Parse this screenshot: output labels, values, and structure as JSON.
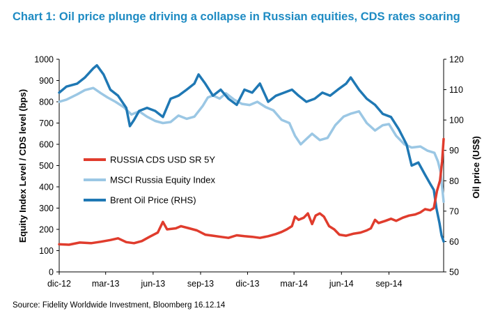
{
  "title": "Chart 1: Oil price plunge driving a collapse in Russian equities, CDS rates soaring",
  "source": "Source: Fidelity Worldwide Investment, Bloomberg 16.12.14",
  "chart_data": {
    "type": "line",
    "ylabel": "Equity Index Level / CDS level (bps)",
    "y2label": "Oil price (US$)",
    "ylim": [
      0,
      1000
    ],
    "y2lim": [
      50,
      120
    ],
    "yticks": [
      0,
      100,
      200,
      300,
      400,
      500,
      600,
      700,
      800,
      900,
      1000
    ],
    "y2ticks": [
      50,
      60,
      70,
      80,
      90,
      100,
      110,
      120
    ],
    "xlim": [
      "2012-12-01",
      "2014-12-16"
    ],
    "xticks": [
      {
        "label": "dic-12",
        "x": "2012-12-01"
      },
      {
        "label": "mar-13",
        "x": "2013-03-01"
      },
      {
        "label": "jun-13",
        "x": "2013-06-01"
      },
      {
        "label": "sep-13",
        "x": "2013-09-01"
      },
      {
        "label": "dic-13",
        "x": "2013-12-01"
      },
      {
        "label": "mar-14",
        "x": "2014-03-01"
      },
      {
        "label": "jun-14",
        "x": "2014-06-01"
      },
      {
        "label": "sep-14",
        "x": "2014-09-01"
      }
    ],
    "legend_position": "center-left",
    "series": [
      {
        "name": "RUSSIA CDS USD SR 5Y",
        "axis": "left",
        "color": "#e03c2d",
        "points": [
          [
            "2012-12-01",
            130
          ],
          [
            "2012-12-20",
            128
          ],
          [
            "2013-01-10",
            138
          ],
          [
            "2013-02-01",
            135
          ],
          [
            "2013-02-20",
            142
          ],
          [
            "2013-03-10",
            150
          ],
          [
            "2013-03-25",
            158
          ],
          [
            "2013-04-10",
            140
          ],
          [
            "2013-04-25",
            135
          ],
          [
            "2013-05-10",
            145
          ],
          [
            "2013-05-25",
            165
          ],
          [
            "2013-06-10",
            185
          ],
          [
            "2013-06-20",
            235
          ],
          [
            "2013-06-28",
            200
          ],
          [
            "2013-07-15",
            205
          ],
          [
            "2013-07-25",
            215
          ],
          [
            "2013-08-10",
            205
          ],
          [
            "2013-08-25",
            195
          ],
          [
            "2013-09-10",
            175
          ],
          [
            "2013-09-25",
            170
          ],
          [
            "2013-10-10",
            165
          ],
          [
            "2013-10-25",
            160
          ],
          [
            "2013-11-10",
            172
          ],
          [
            "2013-11-25",
            168
          ],
          [
            "2013-12-10",
            165
          ],
          [
            "2013-12-25",
            160
          ],
          [
            "2014-01-10",
            168
          ],
          [
            "2014-01-25",
            178
          ],
          [
            "2014-02-05",
            188
          ],
          [
            "2014-02-15",
            200
          ],
          [
            "2014-02-25",
            215
          ],
          [
            "2014-03-03",
            260
          ],
          [
            "2014-03-10",
            245
          ],
          [
            "2014-03-20",
            255
          ],
          [
            "2014-03-28",
            275
          ],
          [
            "2014-04-05",
            225
          ],
          [
            "2014-04-12",
            265
          ],
          [
            "2014-04-20",
            275
          ],
          [
            "2014-04-28",
            260
          ],
          [
            "2014-05-08",
            215
          ],
          [
            "2014-05-18",
            200
          ],
          [
            "2014-05-28",
            175
          ],
          [
            "2014-06-10",
            170
          ],
          [
            "2014-06-25",
            180
          ],
          [
            "2014-07-08",
            185
          ],
          [
            "2014-07-20",
            195
          ],
          [
            "2014-07-28",
            205
          ],
          [
            "2014-08-05",
            245
          ],
          [
            "2014-08-12",
            230
          ],
          [
            "2014-08-25",
            240
          ],
          [
            "2014-09-05",
            250
          ],
          [
            "2014-09-15",
            240
          ],
          [
            "2014-09-28",
            255
          ],
          [
            "2014-10-10",
            265
          ],
          [
            "2014-10-22",
            270
          ],
          [
            "2014-11-01",
            280
          ],
          [
            "2014-11-10",
            295
          ],
          [
            "2014-11-20",
            290
          ],
          [
            "2014-11-27",
            300
          ],
          [
            "2014-12-03",
            380
          ],
          [
            "2014-12-09",
            430
          ],
          [
            "2014-12-13",
            520
          ],
          [
            "2014-12-16",
            625
          ]
        ]
      },
      {
        "name": "MSCI Russia Equity Index",
        "axis": "left",
        "color": "#9bc7e4",
        "points": [
          [
            "2012-12-01",
            800
          ],
          [
            "2012-12-15",
            810
          ],
          [
            "2013-01-05",
            835
          ],
          [
            "2013-01-20",
            855
          ],
          [
            "2013-02-05",
            865
          ],
          [
            "2013-02-20",
            840
          ],
          [
            "2013-03-05",
            820
          ],
          [
            "2013-03-20",
            800
          ],
          [
            "2013-04-05",
            775
          ],
          [
            "2013-04-20",
            740
          ],
          [
            "2013-05-05",
            755
          ],
          [
            "2013-05-20",
            730
          ],
          [
            "2013-06-05",
            710
          ],
          [
            "2013-06-20",
            700
          ],
          [
            "2013-07-05",
            705
          ],
          [
            "2013-07-20",
            735
          ],
          [
            "2013-08-05",
            720
          ],
          [
            "2013-08-20",
            730
          ],
          [
            "2013-09-05",
            780
          ],
          [
            "2013-09-15",
            820
          ],
          [
            "2013-09-25",
            830
          ],
          [
            "2013-10-08",
            815
          ],
          [
            "2013-10-20",
            840
          ],
          [
            "2013-11-05",
            810
          ],
          [
            "2013-11-20",
            790
          ],
          [
            "2013-12-05",
            785
          ],
          [
            "2013-12-20",
            800
          ],
          [
            "2014-01-05",
            775
          ],
          [
            "2014-01-20",
            760
          ],
          [
            "2014-02-05",
            715
          ],
          [
            "2014-02-20",
            700
          ],
          [
            "2014-03-03",
            640
          ],
          [
            "2014-03-14",
            600
          ],
          [
            "2014-03-25",
            625
          ],
          [
            "2014-04-05",
            650
          ],
          [
            "2014-04-20",
            620
          ],
          [
            "2014-05-05",
            630
          ],
          [
            "2014-05-20",
            690
          ],
          [
            "2014-06-05",
            730
          ],
          [
            "2014-06-20",
            745
          ],
          [
            "2014-07-05",
            755
          ],
          [
            "2014-07-20",
            700
          ],
          [
            "2014-08-05",
            665
          ],
          [
            "2014-08-20",
            690
          ],
          [
            "2014-09-01",
            695
          ],
          [
            "2014-09-15",
            640
          ],
          [
            "2014-10-01",
            600
          ],
          [
            "2014-10-15",
            585
          ],
          [
            "2014-11-01",
            590
          ],
          [
            "2014-11-15",
            570
          ],
          [
            "2014-11-28",
            560
          ],
          [
            "2014-12-05",
            520
          ],
          [
            "2014-12-10",
            470
          ],
          [
            "2014-12-16",
            330
          ]
        ]
      },
      {
        "name": "Brent Oil Price (RHS)",
        "axis": "right",
        "color": "#1f78b4",
        "points": [
          [
            "2012-12-01",
            109
          ],
          [
            "2012-12-15",
            111
          ],
          [
            "2013-01-05",
            112
          ],
          [
            "2013-01-20",
            114
          ],
          [
            "2013-02-05",
            117
          ],
          [
            "2013-02-12",
            118
          ],
          [
            "2013-02-25",
            115
          ],
          [
            "2013-03-10",
            110
          ],
          [
            "2013-03-25",
            108
          ],
          [
            "2013-04-10",
            104
          ],
          [
            "2013-04-17",
            98
          ],
          [
            "2013-04-25",
            100
          ],
          [
            "2013-05-05",
            103
          ],
          [
            "2013-05-20",
            104
          ],
          [
            "2013-06-05",
            103
          ],
          [
            "2013-06-20",
            101
          ],
          [
            "2013-07-05",
            107
          ],
          [
            "2013-07-20",
            108
          ],
          [
            "2013-08-05",
            110
          ],
          [
            "2013-08-20",
            112
          ],
          [
            "2013-08-28",
            115
          ],
          [
            "2013-09-10",
            112
          ],
          [
            "2013-09-25",
            108
          ],
          [
            "2013-10-10",
            110
          ],
          [
            "2013-10-25",
            107
          ],
          [
            "2013-11-10",
            105
          ],
          [
            "2013-11-25",
            110
          ],
          [
            "2013-12-10",
            109
          ],
          [
            "2013-12-25",
            112
          ],
          [
            "2014-01-10",
            106
          ],
          [
            "2014-01-25",
            108
          ],
          [
            "2014-02-10",
            109
          ],
          [
            "2014-02-25",
            110
          ],
          [
            "2014-03-10",
            108
          ],
          [
            "2014-03-25",
            106
          ],
          [
            "2014-04-10",
            107
          ],
          [
            "2014-04-25",
            109
          ],
          [
            "2014-05-10",
            108
          ],
          [
            "2014-05-25",
            110
          ],
          [
            "2014-06-10",
            112
          ],
          [
            "2014-06-19",
            114
          ],
          [
            "2014-07-05",
            110
          ],
          [
            "2014-07-20",
            107
          ],
          [
            "2014-08-05",
            105
          ],
          [
            "2014-08-20",
            102
          ],
          [
            "2014-09-05",
            101
          ],
          [
            "2014-09-20",
            97
          ],
          [
            "2014-10-05",
            92
          ],
          [
            "2014-10-15",
            85
          ],
          [
            "2014-10-28",
            86
          ],
          [
            "2014-11-10",
            82
          ],
          [
            "2014-11-20",
            79
          ],
          [
            "2014-11-27",
            77
          ],
          [
            "2014-12-02",
            71
          ],
          [
            "2014-12-08",
            66
          ],
          [
            "2014-12-12",
            62
          ],
          [
            "2014-12-16",
            60
          ]
        ]
      }
    ]
  }
}
